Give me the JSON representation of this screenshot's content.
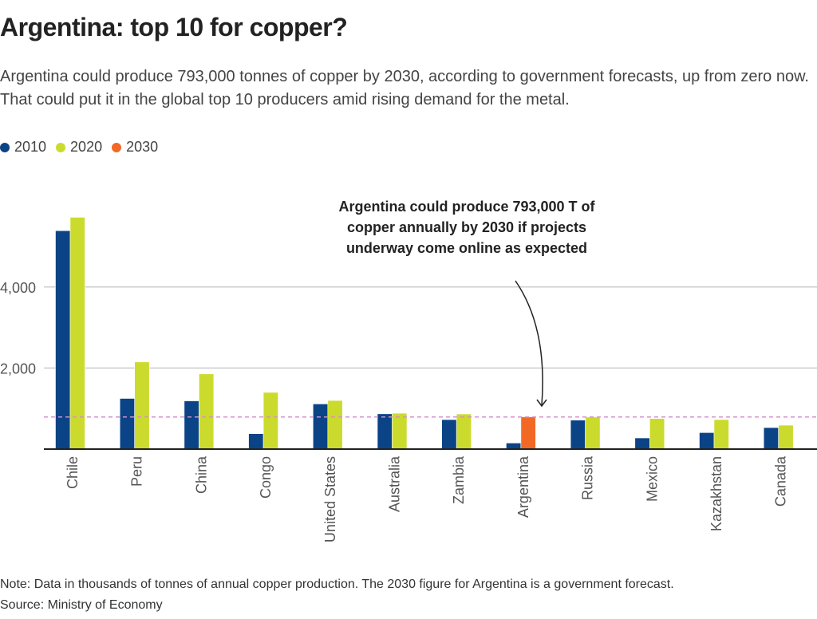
{
  "title": "Argentina: top 10 for copper?",
  "subtitle": "Argentina could produce 793,000 tonnes of copper by 2030, according to government forecasts, up from zero now. That could put it in the global top 10 producers amid rising demand for the metal.",
  "note": "Note: Data in thousands of tonnes of annual copper production. The 2030 figure for Argentina is a government forecast.",
  "source": "Source: Ministry of Economy",
  "colors": {
    "2010": "#0b4387",
    "2020": "#cbdb2d",
    "2030": "#f26925",
    "reference_line": "#d591c9"
  },
  "chart_data": {
    "type": "bar",
    "title": "",
    "xlabel": "",
    "ylabel": "",
    "ylim": [
      0,
      5900
    ],
    "yticks": [
      2000,
      4000
    ],
    "ytick_labels": [
      "2,000",
      "4,000"
    ],
    "grid": true,
    "legend": "top-left",
    "categories": [
      "Chile",
      "Peru",
      "China",
      "Congo",
      "United States",
      "Australia",
      "Zambia",
      "Argentina",
      "Russia",
      "Mexico",
      "Kazakhstan",
      "Canada"
    ],
    "series": [
      {
        "name": "2010",
        "values": [
          5390,
          1250,
          1190,
          380,
          1115,
          870,
          728,
          150,
          715,
          275,
          407,
          531
        ]
      },
      {
        "name": "2020",
        "values": [
          5720,
          2150,
          1855,
          1400,
          1200,
          885,
          866,
          null,
          790,
          755,
          728,
          590
        ]
      },
      {
        "name": "2030",
        "values": [
          null,
          null,
          null,
          null,
          null,
          null,
          null,
          793,
          null,
          null,
          null,
          null
        ]
      }
    ],
    "reference_line": {
      "value": 793,
      "style": "dashed"
    },
    "annotation": "Argentina could produce 793,000 T of copper annually by 2030 if projects underway come online as expected"
  }
}
